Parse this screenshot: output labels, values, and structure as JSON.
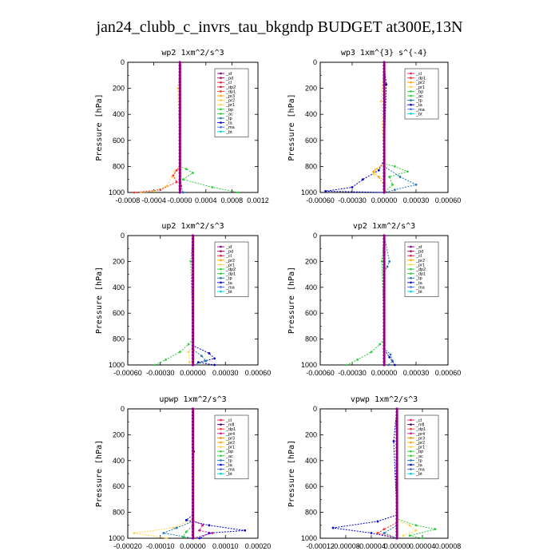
{
  "figure": {
    "title": "jan24_clubb_c_invrs_tau_bkgndp  BUDGET at300E,13N"
  },
  "chart_data": [
    {
      "type": "line",
      "title": "wp2   1xm^2/s^3",
      "ylabel": "Pressure [hPa]",
      "ylim": [
        1000,
        0
      ],
      "xlim": [
        -0.0008,
        0.0012
      ],
      "yticks": [
        "0",
        "200",
        "400",
        "600",
        "800",
        "1000"
      ],
      "xticks": [
        "-0.0008",
        "-0.0004",
        "-0.0000",
        "0.0004",
        "0.0008",
        "0.0012"
      ],
      "legend": [
        "_sf",
        "_pd",
        "_cl",
        "_dp2",
        "_dp1",
        "_pr3",
        "_pr2",
        "_pr1",
        "_bp",
        "_ac",
        "_tp",
        "_ta",
        "_ma",
        "_bt"
      ],
      "colors": [
        "#800080",
        "#b0005a",
        "#e6194b",
        "#d2122e",
        "#ff3030",
        "#ffa500",
        "#ffcc33",
        "#ffd24d",
        "#2ecc40",
        "#32cd32",
        "#1f77b4",
        "#0000cd",
        "#4169e1",
        "#00ced1"
      ],
      "profiles": {
        "_bp": [
          [
            0,
            0
          ],
          [
            0,
            800
          ],
          [
            0.0001,
            820
          ],
          [
            0.0002,
            850
          ],
          [
            5e-05,
            900
          ],
          [
            0.0005,
            960
          ],
          [
            0.0009,
            1000
          ]
        ],
        "_pr1": [
          [
            0,
            0
          ],
          [
            -3e-05,
            200
          ],
          [
            0,
            800
          ],
          [
            -8e-05,
            840
          ],
          [
            -0.00012,
            880
          ],
          [
            -0.0002,
            950
          ],
          [
            -0.0004,
            990
          ],
          [
            -0.0006,
            1000
          ]
        ],
        "_dp1": [
          [
            0,
            0
          ],
          [
            0,
            800
          ],
          [
            -5e-05,
            830
          ],
          [
            -0.0001,
            870
          ],
          [
            -5e-05,
            920
          ],
          [
            -0.0003,
            980
          ],
          [
            -0.0007,
            1000
          ]
        ],
        "_tp": [
          [
            0,
            0
          ],
          [
            0,
            850
          ],
          [
            2e-05,
            950
          ],
          [
            5e-05,
            1000
          ]
        ]
      }
    },
    {
      "type": "line",
      "title": "wp3   1xm^{3} s^{-4}",
      "ylabel": "Pressure [hPa]",
      "ylim": [
        1000,
        0
      ],
      "xlim": [
        -0.0006,
        0.0006
      ],
      "yticks": [
        "0",
        "200",
        "400",
        "600",
        "800",
        "1000"
      ],
      "xticks": [
        "-0.00060",
        "-0.00030",
        "0.00000",
        "0.00030",
        "0.00060"
      ],
      "legend": [
        "_cl",
        "_dp1",
        "_pr2",
        "_pr1",
        "_bp",
        "_ac",
        "_tp",
        "_ta",
        "_ma",
        "_bt"
      ],
      "colors": [
        "#e6194b",
        "#ff3030",
        "#ffa500",
        "#ffd24d",
        "#2ecc40",
        "#32cd32",
        "#1f77b4",
        "#0000cd",
        "#4169e1",
        "#00ced1"
      ],
      "profiles": {
        "_bp": [
          [
            0,
            0
          ],
          [
            0,
            780
          ],
          [
            0.0001,
            800
          ],
          [
            0.00022,
            840
          ],
          [
            5e-05,
            880
          ],
          [
            8e-05,
            940
          ],
          [
            0,
            1000
          ]
        ],
        "_ta": [
          [
            0,
            0
          ],
          [
            2e-05,
            170
          ],
          [
            0,
            750
          ],
          [
            -5e-05,
            830
          ],
          [
            -0.0002,
            900
          ],
          [
            -0.0003,
            960
          ],
          [
            -0.00055,
            990
          ],
          [
            0,
            1000
          ]
        ],
        "_tp": [
          [
            0,
            0
          ],
          [
            0,
            800
          ],
          [
            0.00015,
            880
          ],
          [
            0.0003,
            940
          ],
          [
            0.0001,
            980
          ],
          [
            0,
            1000
          ]
        ],
        "_pr1": [
          [
            0,
            0
          ],
          [
            -3e-05,
            300
          ],
          [
            0,
            780
          ],
          [
            -8e-05,
            820
          ],
          [
            -0.0001,
            860
          ],
          [
            0,
            900
          ]
        ],
        "_pr2": [
          [
            0,
            0
          ],
          [
            0,
            780
          ],
          [
            -0.0001,
            840
          ],
          [
            -5e-05,
            880
          ],
          [
            0,
            950
          ]
        ]
      }
    },
    {
      "type": "line",
      "title": "up2   1xm^2/s^3",
      "ylabel": "Pressure [hPa]",
      "ylim": [
        1000,
        0
      ],
      "xlim": [
        -0.0006,
        0.0006
      ],
      "yticks": [
        "0",
        "200",
        "400",
        "600",
        "800",
        "1000"
      ],
      "xticks": [
        "-0.00060",
        "-0.00030",
        "0.00000",
        "0.00030",
        "0.00060"
      ],
      "legend": [
        "_sf",
        "_pd",
        "_cl",
        "_pr2",
        "_pr1",
        "_dp2",
        "_dp1",
        "_tp",
        "_ta",
        "_ma",
        "_bt"
      ],
      "colors": [
        "#800080",
        "#b0005a",
        "#e6194b",
        "#ffa500",
        "#ffd24d",
        "#32cd32",
        "#2ecc40",
        "#1f77b4",
        "#0000cd",
        "#4169e1",
        "#00ced1"
      ],
      "profiles": {
        "_dp1": [
          [
            0,
            0
          ],
          [
            -2e-05,
            200
          ],
          [
            0,
            800
          ],
          [
            -4e-05,
            840
          ],
          [
            -0.00012,
            900
          ],
          [
            -0.00025,
            960
          ],
          [
            -0.00035,
            1000
          ]
        ],
        "_ta": [
          [
            0,
            0
          ],
          [
            0,
            850
          ],
          [
            0.00015,
            910
          ],
          [
            0.0002,
            950
          ],
          [
            5e-05,
            980
          ],
          [
            0.0002,
            1000
          ]
        ],
        "_tp": [
          [
            0,
            0
          ],
          [
            0,
            880
          ],
          [
            8e-05,
            930
          ],
          [
            0.00012,
            970
          ],
          [
            0,
            1000
          ]
        ],
        "_pr1": [
          [
            0,
            0
          ],
          [
            0,
            850
          ],
          [
            -4e-05,
            900
          ],
          [
            -3e-05,
            980
          ]
        ]
      }
    },
    {
      "type": "line",
      "title": "vp2   1xm^2/s^3",
      "ylabel": "Pressure [hPa]",
      "ylim": [
        1000,
        0
      ],
      "xlim": [
        -0.0006,
        0.0006
      ],
      "yticks": [
        "0",
        "200",
        "400",
        "600",
        "800",
        "1000"
      ],
      "xticks": [
        "-0.00060",
        "-0.00030",
        "0.00000",
        "0.00030",
        "0.00060"
      ],
      "legend": [
        "_sf",
        "_pd",
        "_cl",
        "_pr2",
        "_pr1",
        "_dp2",
        "_dp1",
        "_tp",
        "_ta",
        "_ma",
        "_bt"
      ],
      "colors": [
        "#800080",
        "#b0005a",
        "#e6194b",
        "#ffa500",
        "#ffd24d",
        "#32cd32",
        "#2ecc40",
        "#1f77b4",
        "#0000cd",
        "#4169e1",
        "#00ced1"
      ],
      "profiles": {
        "_dp1": [
          [
            0,
            0
          ],
          [
            -2e-05,
            200
          ],
          [
            0,
            800
          ],
          [
            -4e-05,
            840
          ],
          [
            -0.00012,
            900
          ],
          [
            -0.00025,
            960
          ],
          [
            -0.00035,
            1000
          ]
        ],
        "_tp": [
          [
            0,
            0
          ],
          [
            5e-05,
            200
          ],
          [
            3e-05,
            240
          ],
          [
            0,
            280
          ],
          [
            0,
            870
          ],
          [
            6e-05,
            920
          ],
          [
            8e-05,
            970
          ],
          [
            4e-05,
            1000
          ]
        ],
        "_ta": [
          [
            0,
            0
          ],
          [
            0,
            880
          ],
          [
            5e-05,
            940
          ],
          [
            0.0001,
            1000
          ]
        ]
      }
    },
    {
      "type": "line",
      "title": "upwp   1xm^2/s^3",
      "ylabel": "Pressure [hPa]",
      "ylim": [
        1000,
        0
      ],
      "xlim": [
        -0.0002,
        0.0002
      ],
      "yticks": [
        "0",
        "200",
        "400",
        "600",
        "800",
        "1000"
      ],
      "xticks": [
        "-0.00020",
        "-0.00010",
        "0.00000",
        "0.00010",
        "0.00020"
      ],
      "legend": [
        "_cl",
        "_mfl",
        "_dp1",
        "_pr4",
        "_pr3",
        "_pr2",
        "_pr1",
        "_bp",
        "_ac",
        "_tp",
        "_ta",
        "_ma",
        "_bt"
      ],
      "colors": [
        "#e6194b",
        "#4b0082",
        "#ff3030",
        "#c71585",
        "#ff8c00",
        "#ffa500",
        "#ffd24d",
        "#2ecc40",
        "#32cd32",
        "#1f77b4",
        "#0000cd",
        "#4169e1",
        "#00ced1"
      ],
      "profiles": {
        "_ta": [
          [
            0,
            0
          ],
          [
            3e-06,
            330
          ],
          [
            0,
            820
          ],
          [
            -2e-05,
            860
          ],
          [
            5e-05,
            900
          ],
          [
            0.00016,
            940
          ],
          [
            5e-05,
            960
          ],
          [
            2e-05,
            1000
          ]
        ],
        "_pr1": [
          [
            0,
            0
          ],
          [
            0,
            850
          ],
          [
            -6e-05,
            920
          ],
          [
            -0.00018,
            960
          ],
          [
            -8e-05,
            1000
          ]
        ],
        "_tp": [
          [
            0,
            0
          ],
          [
            0,
            870
          ],
          [
            -5e-05,
            920
          ],
          [
            -9e-05,
            960
          ],
          [
            0,
            1000
          ]
        ],
        "_pr4": [
          [
            0,
            0
          ],
          [
            0,
            860
          ],
          [
            3e-05,
            900
          ],
          [
            2e-05,
            940
          ],
          [
            6e-05,
            960
          ],
          [
            0,
            1000
          ]
        ],
        "_bp": [
          [
            0,
            0
          ],
          [
            0,
            900
          ],
          [
            -2e-05,
            950
          ],
          [
            -3e-05,
            990
          ]
        ]
      }
    },
    {
      "type": "line",
      "title": "vpwp   1xm^2/s^3",
      "ylabel": "Pressure [hPa]",
      "ylim": [
        1000,
        0
      ],
      "xlim": [
        -0.00012,
        8e-05
      ],
      "yticks": [
        "0",
        "200",
        "400",
        "600",
        "800",
        "1000"
      ],
      "xticks": [
        "-0.00012",
        "-0.00008",
        "-0.00004",
        "0.00000",
        "0.00004",
        "0.00008"
      ],
      "legend": [
        "_cl",
        "_mfl",
        "_dp1",
        "_pr4",
        "_pr3",
        "_pr2",
        "_pr1",
        "_bp",
        "_ac",
        "_tp",
        "_ta",
        "_ma",
        "_bt"
      ],
      "colors": [
        "#e6194b",
        "#4b0082",
        "#ff3030",
        "#c71585",
        "#ff8c00",
        "#ffa500",
        "#ffd24d",
        "#2ecc40",
        "#32cd32",
        "#1f77b4",
        "#0000cd",
        "#4169e1",
        "#00ced1"
      ],
      "profiles": {
        "_ta": [
          [
            0,
            0
          ],
          [
            -5e-06,
            250
          ],
          [
            0,
            820
          ],
          [
            -3e-05,
            870
          ],
          [
            -0.0001,
            920
          ],
          [
            -4e-05,
            960
          ],
          [
            0,
            1000
          ]
        ],
        "_bp": [
          [
            0,
            0
          ],
          [
            0,
            850
          ],
          [
            3e-05,
            900
          ],
          [
            6e-05,
            930
          ],
          [
            2e-05,
            980
          ],
          [
            4e-05,
            1000
          ]
        ],
        "_pr1": [
          [
            0,
            0
          ],
          [
            0,
            860
          ],
          [
            2e-05,
            900
          ],
          [
            3e-05,
            940
          ],
          [
            1e-05,
            980
          ]
        ],
        "_dp1": [
          [
            0,
            0
          ],
          [
            0,
            880
          ],
          [
            -2e-05,
            930
          ],
          [
            -3e-05,
            960
          ],
          [
            0,
            1000
          ]
        ],
        "_tp": [
          [
            0,
            0
          ],
          [
            0,
            900
          ],
          [
            -2e-05,
            960
          ],
          [
            0,
            1000
          ]
        ]
      }
    }
  ]
}
